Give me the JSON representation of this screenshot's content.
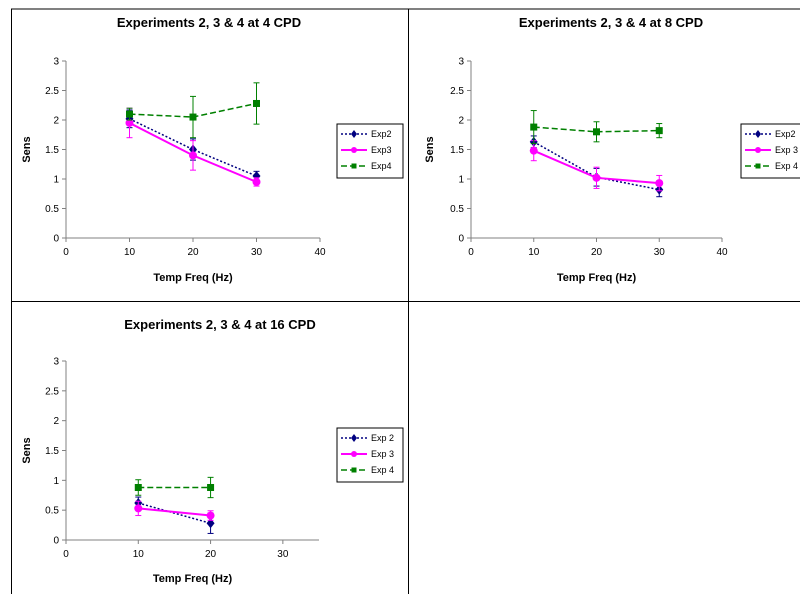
{
  "chart_data": [
    {
      "type": "line",
      "title": "Experiments 2, 3 & 4 at 4 CPD",
      "xlabel": "Temp Freq (Hz)",
      "ylabel": "Sens",
      "xlim": [
        0,
        40
      ],
      "ylim": [
        0,
        3
      ],
      "xticks": [
        "0",
        "10",
        "20",
        "30",
        "40"
      ],
      "yticks": [
        "0",
        "0.5",
        "1",
        "1.5",
        "2",
        "2.5",
        "3"
      ],
      "grid": false,
      "legend_position": "right",
      "series": [
        {
          "name": "Exp2",
          "color": "#000080",
          "dash": "dotted",
          "marker": "diamond",
          "x": [
            10,
            20,
            30
          ],
          "y": [
            2.02,
            1.5,
            1.05
          ],
          "err": [
            0.15,
            0.18,
            0.08
          ]
        },
        {
          "name": "Exp3",
          "color": "#ff00ff",
          "dash": "solid",
          "marker": "circle",
          "x": [
            10,
            20,
            30
          ],
          "y": [
            1.95,
            1.4,
            0.95
          ],
          "err": [
            0.25,
            0.25,
            0.07
          ]
        },
        {
          "name": "Exp4",
          "color": "#008000",
          "dash": "dashed",
          "marker": "square",
          "x": [
            10,
            20,
            30
          ],
          "y": [
            2.1,
            2.05,
            2.28
          ],
          "err": [
            0.1,
            0.35,
            0.35
          ]
        }
      ]
    },
    {
      "type": "line",
      "title": "Experiments 2, 3 & 4 at 8 CPD",
      "xlabel": "Temp Freq (Hz)",
      "ylabel": "Sens",
      "xlim": [
        0,
        40
      ],
      "ylim": [
        0,
        3
      ],
      "xticks": [
        "0",
        "10",
        "20",
        "30",
        "40"
      ],
      "yticks": [
        "0",
        "0.5",
        "1",
        "1.5",
        "2",
        "2.5",
        "3"
      ],
      "grid": false,
      "legend_position": "right",
      "series": [
        {
          "name": "Exp2",
          "color": "#000080",
          "dash": "dotted",
          "marker": "diamond",
          "x": [
            10,
            20,
            30
          ],
          "y": [
            1.63,
            1.03,
            0.82
          ],
          "err": [
            0.1,
            0.15,
            0.12
          ]
        },
        {
          "name": "Exp 3",
          "color": "#ff00ff",
          "dash": "solid",
          "marker": "circle",
          "x": [
            10,
            20,
            30
          ],
          "y": [
            1.48,
            1.02,
            0.93
          ],
          "err": [
            0.17,
            0.18,
            0.13
          ]
        },
        {
          "name": "Exp 4",
          "color": "#008000",
          "dash": "dashed",
          "marker": "square",
          "x": [
            10,
            20,
            30
          ],
          "y": [
            1.88,
            1.8,
            1.82
          ],
          "err": [
            0.28,
            0.17,
            0.12
          ]
        }
      ]
    },
    {
      "type": "line",
      "title": "Experiments 2, 3 & 4 at 16 CPD",
      "xlabel": "Temp Freq (Hz)",
      "ylabel": "Sens",
      "xlim": [
        0,
        35
      ],
      "ylim": [
        0,
        3
      ],
      "xticks": [
        "0",
        "10",
        "20",
        "30"
      ],
      "yticks": [
        "0",
        "0.5",
        "1",
        "1.5",
        "2",
        "2.5",
        "3"
      ],
      "grid": false,
      "legend_position": "right",
      "series": [
        {
          "name": "Exp 2",
          "color": "#000080",
          "dash": "dotted",
          "marker": "diamond",
          "x": [
            10,
            20
          ],
          "y": [
            0.62,
            0.28
          ],
          "err": [
            0.1,
            0.17
          ]
        },
        {
          "name": "Exp 3",
          "color": "#ff00ff",
          "dash": "solid",
          "marker": "circle",
          "x": [
            10,
            20
          ],
          "y": [
            0.53,
            0.41
          ],
          "err": [
            0.12,
            0.08
          ]
        },
        {
          "name": "Exp 4",
          "color": "#008000",
          "dash": "dashed",
          "marker": "square",
          "x": [
            10,
            20
          ],
          "y": [
            0.88,
            0.88
          ],
          "err": [
            0.13,
            0.17
          ]
        }
      ]
    }
  ]
}
